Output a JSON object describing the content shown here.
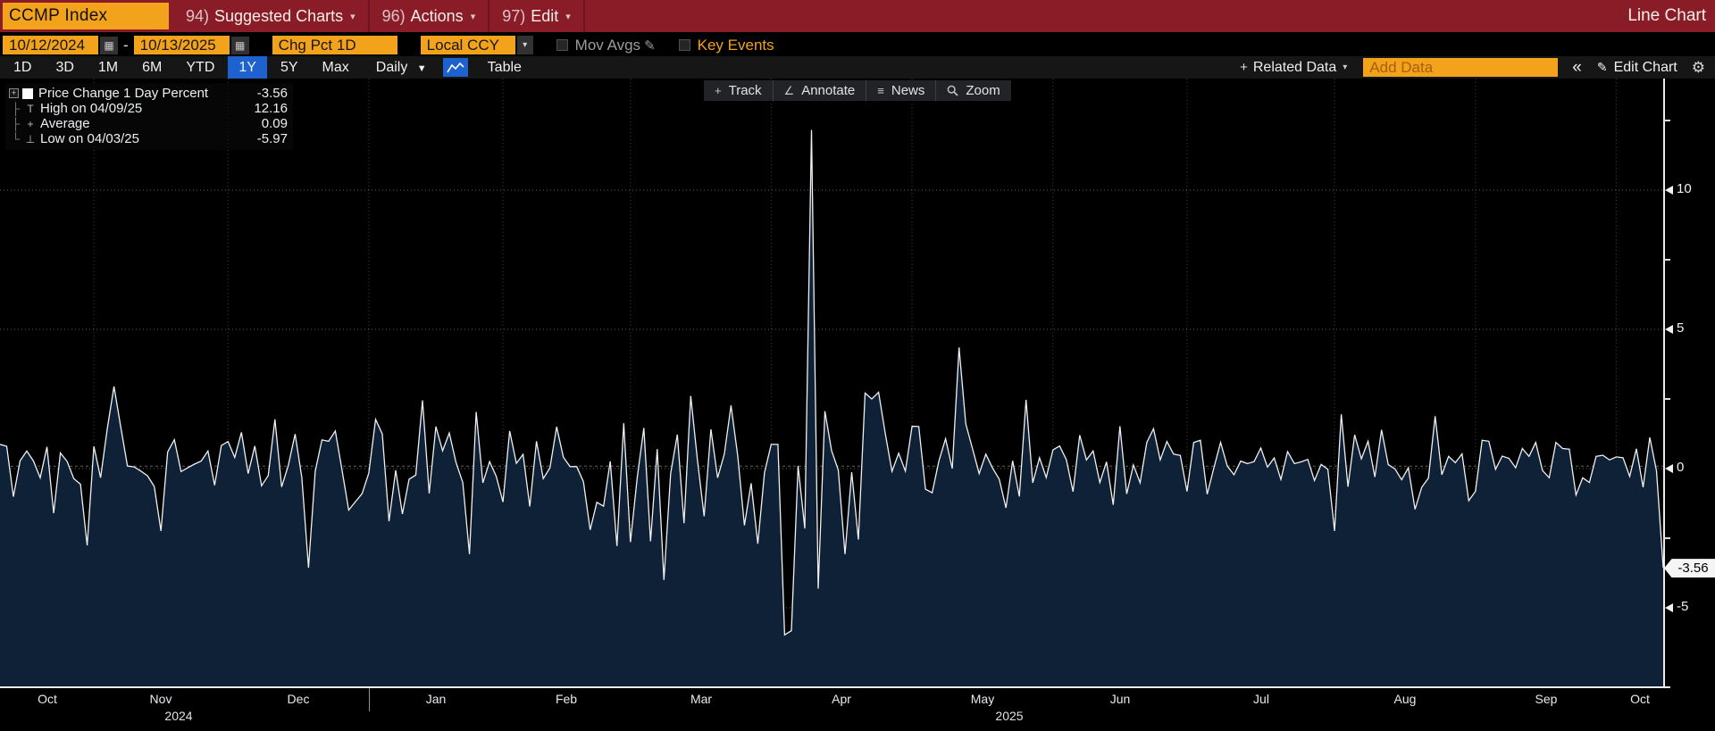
{
  "topbar": {
    "ticker": "CCMP Index",
    "menus": [
      {
        "num": "94)",
        "label": "Suggested Charts",
        "caret": "▾"
      },
      {
        "num": "96)",
        "label": "Actions",
        "caret": "▾"
      },
      {
        "num": "97)",
        "label": "Edit",
        "caret": "▾"
      }
    ],
    "right_label": "Line Chart"
  },
  "settings_bar": {
    "date_from": "10/12/2024",
    "date_to": "10/13/2025",
    "dash": "-",
    "study": "Chg Pct 1D",
    "currency": "Local CCY",
    "mov_avgs_label": "Mov Avgs",
    "mov_avgs_pencil": "✎",
    "key_events_label": "Key Events",
    "calendar_icon": "▦",
    "dropdown_caret": "▾"
  },
  "period_bar": {
    "periods": [
      "1D",
      "3D",
      "1M",
      "6M",
      "YTD",
      "1Y",
      "5Y",
      "Max"
    ],
    "active_period": "1Y",
    "frequency": "Daily",
    "frequency_caret": "▼",
    "table_label": "Table",
    "related_plus": "+",
    "related_label": "Related Data",
    "related_caret": "▾",
    "add_data_placeholder": "Add Data",
    "collapse_label": "«",
    "edit_pencil": "✎",
    "edit_chart_label": "Edit Chart",
    "gear": "⚙"
  },
  "chart_toolbar": {
    "track": "Track",
    "annotate": "Annotate",
    "news": "News",
    "zoom": "Zoom",
    "track_icon": "+",
    "annotate_icon": "∠",
    "news_icon": "≡"
  },
  "legend": {
    "expander": "+",
    "series_label": "Price Change 1 Day Percent",
    "series_value": "-3.56",
    "rows": [
      {
        "marker": "T",
        "label": "High on 04/09/25",
        "value": "12.16"
      },
      {
        "marker": "+",
        "label": "Average",
        "value": "0.09"
      },
      {
        "marker": "⊥",
        "label": "Low on 04/03/25",
        "value": "-5.97"
      }
    ]
  },
  "axis": {
    "y_ticks": [
      10,
      5,
      0,
      -5
    ],
    "y_minor": [
      12.5,
      7.5,
      2.5,
      -2.5
    ],
    "last_badge": "-3.56",
    "x_months": [
      "Oct",
      "Nov",
      "Dec",
      "Jan",
      "Feb",
      "Mar",
      "Apr",
      "May",
      "Jun",
      "Jul",
      "Aug",
      "Sep",
      "Oct"
    ],
    "years": [
      {
        "label": "2024",
        "x": 200
      },
      {
        "label": "2025",
        "x": 1130
      }
    ],
    "year_divider_boundary_idx": 55
  },
  "colors": {
    "accent_orange": "#f3a21b",
    "header_red": "#8a1c28",
    "active_blue": "#1e62d0",
    "chart_fill": "#0e2137",
    "chart_line": "#f0f0f0",
    "badge_bg": "#f5f5f5"
  },
  "chart_data": {
    "type": "line",
    "title": "CCMP Index — Price Change 1 Day Percent (1Y, Daily)",
    "xlabel": "",
    "ylabel": "Price Change 1 Day Percent",
    "x_start": "10/12/2024",
    "x_end": "10/13/2025",
    "ylim": [
      -7.5,
      14
    ],
    "y_ticks": [
      10,
      5,
      0,
      -5
    ],
    "grid": true,
    "legend_position": "top-left",
    "month_boundaries_idx": [
      14,
      34,
      55,
      75,
      94,
      115,
      136,
      157,
      177,
      199,
      220,
      241
    ],
    "stats": {
      "last": -3.56,
      "high": 12.16,
      "high_date": "04/09/25",
      "average": 0.09,
      "low": -5.97,
      "low_date": "04/03/25"
    },
    "values": [
      0.87,
      0.8,
      -1.01,
      0.28,
      0.63,
      0.27,
      -0.33,
      0.78,
      -1.6,
      0.56,
      0.26,
      -0.36,
      -0.56,
      -2.76,
      0.8,
      -0.33,
      1.43,
      2.95,
      1.51,
      0.09,
      0.06,
      -0.09,
      -0.26,
      -0.64,
      -2.24,
      0.6,
      1.04,
      -0.11,
      0.03,
      0.16,
      0.27,
      0.63,
      -0.6,
      0.83,
      0.97,
      0.4,
      1.3,
      -0.18,
      0.81,
      -0.62,
      -0.25,
      1.77,
      -0.66,
      0.12,
      1.24,
      -0.32,
      -3.56,
      -0.1,
      1.03,
      0.98,
      1.35,
      -0.05,
      -1.49,
      -1.19,
      -0.9,
      -0.16,
      1.77,
      1.24,
      -1.89,
      -0.06,
      -1.63,
      -0.38,
      -0.23,
      2.45,
      -0.89,
      1.51,
      0.64,
      1.28,
      0.22,
      -0.5,
      -3.07,
      2.03,
      -0.51,
      0.25,
      -0.28,
      -1.2,
      1.35,
      0.19,
      0.51,
      -1.36,
      0.98,
      -0.36,
      0.03,
      1.5,
      0.41,
      0.07,
      0.07,
      -0.47,
      -2.2,
      -1.21,
      -1.35,
      0.26,
      -2.78,
      1.63,
      -2.64,
      -0.35,
      1.46,
      -2.61,
      0.7,
      -4.0,
      -0.18,
      1.22,
      -1.96,
      2.61,
      0.31,
      -1.71,
      1.41,
      -0.33,
      0.52,
      2.27,
      0.46,
      -2.04,
      -0.53,
      -2.7,
      -0.14,
      0.87,
      0.87,
      -5.97,
      -5.82,
      0.1,
      -2.15,
      12.16,
      -4.31,
      2.06,
      0.64,
      -0.05,
      -3.07,
      -0.13,
      -2.55,
      2.71,
      2.5,
      2.74,
      1.26,
      -0.1,
      0.55,
      -0.09,
      1.52,
      1.51,
      -0.74,
      -0.87,
      0.27,
      1.07,
      0.0,
      4.35,
      1.61,
      0.72,
      -0.18,
      0.52,
      0.02,
      -0.38,
      -1.41,
      0.28,
      -1.0,
      2.47,
      -0.51,
      0.39,
      -0.32,
      0.67,
      0.81,
      0.32,
      -0.83,
      1.2,
      0.31,
      0.63,
      -0.5,
      0.24,
      -1.3,
      1.52,
      -0.91,
      0.13,
      -0.51,
      0.94,
      1.43,
      0.31,
      0.97,
      0.52,
      0.47,
      -0.82,
      0.94,
      1.02,
      -0.92,
      0.03,
      0.94,
      0.09,
      -0.22,
      0.27,
      0.18,
      0.25,
      0.74,
      0.05,
      0.38,
      -0.39,
      0.61,
      0.18,
      0.24,
      0.33,
      -0.43,
      0.15,
      -0.03,
      -2.24,
      1.95,
      -0.65,
      1.21,
      0.35,
      0.98,
      -0.3,
      1.39,
      0.14,
      -0.01,
      -0.4,
      0.03,
      -1.46,
      -0.67,
      -0.34,
      1.88,
      -0.22,
      0.44,
      0.21,
      0.53,
      -1.15,
      -0.82,
      1.02,
      0.98,
      -0.03,
      0.45,
      0.37,
      0.03,
      0.72,
      0.44,
      0.94,
      -0.07,
      -0.33,
      0.94,
      0.72,
      0.7,
      -0.95,
      -0.33,
      -0.5,
      0.44,
      0.48,
      0.31,
      0.42,
      0.39,
      -0.28,
      0.71,
      -0.67,
      1.12,
      -0.08,
      -3.56
    ]
  }
}
